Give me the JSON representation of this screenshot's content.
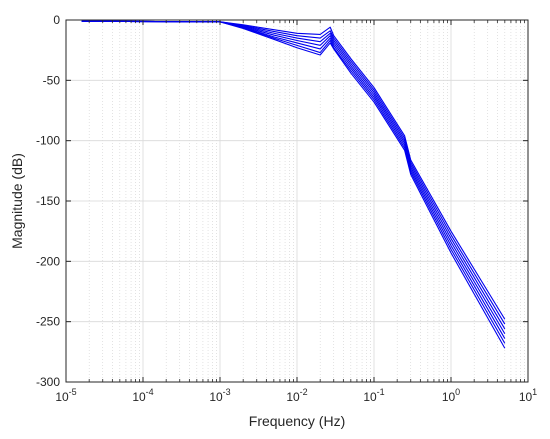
{
  "chart_data": {
    "type": "line",
    "title": "",
    "xlabel": "Frequency (Hz)",
    "ylabel": "Magnitude (dB)",
    "xscale": "log",
    "xlim": [
      1e-05,
      10
    ],
    "ylim": [
      -300,
      0
    ],
    "x_ticks": [
      {
        "base": "10",
        "exp": "-5"
      },
      {
        "base": "10",
        "exp": "-4"
      },
      {
        "base": "10",
        "exp": "-3"
      },
      {
        "base": "10",
        "exp": "-2"
      },
      {
        "base": "10",
        "exp": "-1"
      },
      {
        "base": "10",
        "exp": "0"
      },
      {
        "base": "10",
        "exp": "1"
      }
    ],
    "y_ticks": [
      "0",
      "-50",
      "-100",
      "-150",
      "-200",
      "-250",
      "-300"
    ],
    "grid": true,
    "legend": "none",
    "line_color": "#0000ee",
    "series": [
      {
        "values": [
          [
            1.6e-05,
            -1
          ],
          [
            0.001,
            -1.5
          ],
          [
            0.002,
            -4
          ],
          [
            0.005,
            -8
          ],
          [
            0.01,
            -11
          ],
          [
            0.02,
            -12
          ],
          [
            0.027,
            -6
          ],
          [
            0.03,
            -13
          ],
          [
            0.05,
            -32
          ],
          [
            0.1,
            -56
          ],
          [
            0.25,
            -96
          ],
          [
            0.3,
            -116
          ],
          [
            1,
            -175
          ],
          [
            5,
            -248
          ]
        ]
      },
      {
        "values": [
          [
            1.6e-05,
            -1
          ],
          [
            0.001,
            -1.5
          ],
          [
            0.002,
            -4.5
          ],
          [
            0.005,
            -9.5
          ],
          [
            0.01,
            -13
          ],
          [
            0.02,
            -15
          ],
          [
            0.027,
            -9
          ],
          [
            0.03,
            -15
          ],
          [
            0.05,
            -34
          ],
          [
            0.1,
            -58
          ],
          [
            0.25,
            -98
          ],
          [
            0.3,
            -118
          ],
          [
            1,
            -178
          ],
          [
            5,
            -252
          ]
        ]
      },
      {
        "values": [
          [
            1.6e-05,
            -1
          ],
          [
            0.001,
            -1.5
          ],
          [
            0.002,
            -5
          ],
          [
            0.005,
            -11
          ],
          [
            0.01,
            -15
          ],
          [
            0.02,
            -18
          ],
          [
            0.027,
            -11
          ],
          [
            0.03,
            -17
          ],
          [
            0.05,
            -36
          ],
          [
            0.1,
            -60
          ],
          [
            0.25,
            -100
          ],
          [
            0.3,
            -120
          ],
          [
            1,
            -181
          ],
          [
            5,
            -256
          ]
        ]
      },
      {
        "values": [
          [
            1.6e-05,
            -1
          ],
          [
            0.001,
            -1.5
          ],
          [
            0.002,
            -5.5
          ],
          [
            0.005,
            -12.5
          ],
          [
            0.01,
            -17
          ],
          [
            0.02,
            -21
          ],
          [
            0.027,
            -13
          ],
          [
            0.03,
            -19
          ],
          [
            0.05,
            -38
          ],
          [
            0.1,
            -62
          ],
          [
            0.25,
            -102
          ],
          [
            0.3,
            -122
          ],
          [
            1,
            -184
          ],
          [
            5,
            -260
          ]
        ]
      },
      {
        "values": [
          [
            1.6e-05,
            -1
          ],
          [
            0.001,
            -1.5
          ],
          [
            0.002,
            -6
          ],
          [
            0.005,
            -14
          ],
          [
            0.01,
            -19
          ],
          [
            0.02,
            -24
          ],
          [
            0.027,
            -15
          ],
          [
            0.03,
            -21
          ],
          [
            0.05,
            -40
          ],
          [
            0.1,
            -64
          ],
          [
            0.25,
            -104
          ],
          [
            0.3,
            -124
          ],
          [
            1,
            -187
          ],
          [
            5,
            -264
          ]
        ]
      },
      {
        "values": [
          [
            1.6e-05,
            -1
          ],
          [
            0.001,
            -1.5
          ],
          [
            0.002,
            -6.5
          ],
          [
            0.005,
            -15
          ],
          [
            0.01,
            -21
          ],
          [
            0.02,
            -27
          ],
          [
            0.027,
            -17
          ],
          [
            0.03,
            -23
          ],
          [
            0.05,
            -42
          ],
          [
            0.1,
            -66
          ],
          [
            0.25,
            -106
          ],
          [
            0.3,
            -126
          ],
          [
            1,
            -190
          ],
          [
            5,
            -268
          ]
        ]
      },
      {
        "values": [
          [
            1.6e-05,
            -1
          ],
          [
            0.001,
            -1.5
          ],
          [
            0.002,
            -7
          ],
          [
            0.005,
            -16
          ],
          [
            0.01,
            -23
          ],
          [
            0.02,
            -29
          ],
          [
            0.027,
            -19
          ],
          [
            0.03,
            -24
          ],
          [
            0.05,
            -44
          ],
          [
            0.1,
            -68
          ],
          [
            0.25,
            -108
          ],
          [
            0.3,
            -128
          ],
          [
            1,
            -193
          ],
          [
            5,
            -272
          ]
        ]
      }
    ]
  }
}
